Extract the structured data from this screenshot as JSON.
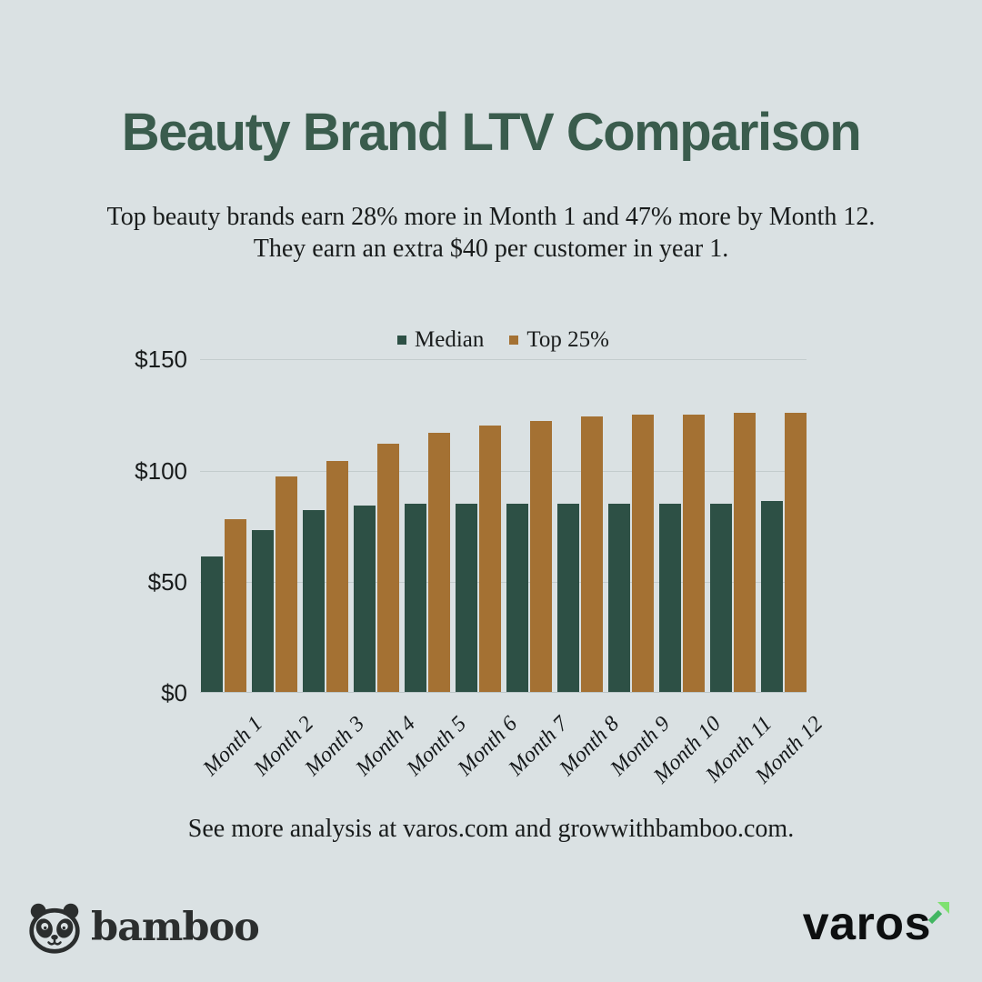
{
  "header": {
    "title": "Beauty Brand LTV Comparison",
    "subtitle_line1": "Top beauty brands earn 28% more in Month 1 and 47% more by Month 12.",
    "subtitle_line2": "They earn an extra $40 per customer in year 1."
  },
  "chart_data": {
    "type": "bar",
    "title": "Beauty Brand LTV Comparison",
    "categories": [
      "Month 1",
      "Month 2",
      "Month 3",
      "Month 4",
      "Month 5",
      "Month 6",
      "Month 7",
      "Month 8",
      "Month 9",
      "Month 10",
      "Month 11",
      "Month 12"
    ],
    "series": [
      {
        "name": "Median",
        "color": "#2d5045",
        "values": [
          61,
          73,
          82,
          84,
          85,
          85,
          85,
          85,
          85,
          85,
          85,
          86
        ]
      },
      {
        "name": "Top 25%",
        "color": "#a47133",
        "values": [
          78,
          97,
          104,
          112,
          117,
          120,
          122,
          124,
          125,
          125,
          126,
          126
        ]
      }
    ],
    "xlabel": "",
    "ylabel": "",
    "ylim": [
      0,
      150
    ],
    "y_tick_labels": [
      "$150",
      "$100",
      "$50",
      "$0"
    ],
    "grid": true,
    "legend_position": "top"
  },
  "footer": {
    "text": "See more analysis at varos.com and growwithbamboo.com."
  },
  "branding": {
    "bamboo_label": "bamboo",
    "varos_label": "varos"
  },
  "colors": {
    "background": "#dae1e3",
    "title_green": "#3a5c4d",
    "median_bar": "#2d5045",
    "top25_bar": "#a47133",
    "text_ink": "#191c1c",
    "gridline": "#c3cccd",
    "bamboo_ink": "#2b2e2e",
    "varos_ink": "#0d0f10",
    "varos_arrow_dark": "#42b662",
    "varos_arrow_light": "#7fe170"
  }
}
